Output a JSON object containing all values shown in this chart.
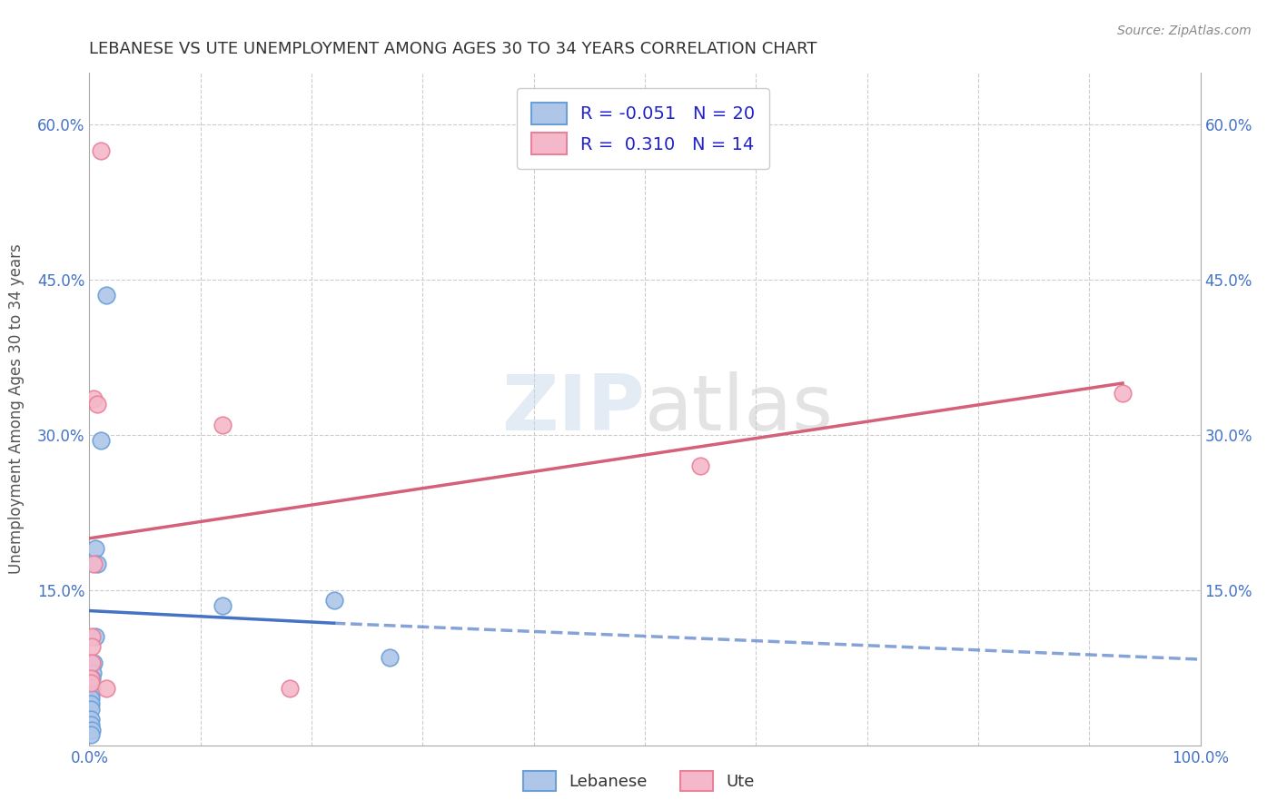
{
  "title": "LEBANESE VS UTE UNEMPLOYMENT AMONG AGES 30 TO 34 YEARS CORRELATION CHART",
  "source": "Source: ZipAtlas.com",
  "ylabel": "Unemployment Among Ages 30 to 34 years",
  "xlim": [
    0,
    1.0
  ],
  "ylim": [
    0,
    0.65
  ],
  "xticks": [
    0.0,
    0.1,
    0.2,
    0.3,
    0.4,
    0.5,
    0.6,
    0.7,
    0.8,
    0.9,
    1.0
  ],
  "xtick_labels": [
    "0.0%",
    "",
    "",
    "",
    "",
    "",
    "",
    "",
    "",
    "",
    "100.0%"
  ],
  "yticks": [
    0.0,
    0.15,
    0.3,
    0.45,
    0.6
  ],
  "ytick_labels": [
    "",
    "15.0%",
    "30.0%",
    "45.0%",
    "60.0%"
  ],
  "watermark_zip": "ZIP",
  "watermark_atlas": "atlas",
  "legend_R_lebanese": "-0.051",
  "legend_N_lebanese": "20",
  "legend_R_ute": "0.310",
  "legend_N_ute": "14",
  "lebanese_color": "#aec6e8",
  "lebanese_edge_color": "#6a9fd8",
  "lebanese_line_color": "#4472c4",
  "ute_color": "#f5b8ca",
  "ute_edge_color": "#e8829a",
  "ute_line_color": "#d4607a",
  "lebanese_scatter": [
    [
      0.01,
      0.295
    ],
    [
      0.015,
      0.435
    ],
    [
      0.005,
      0.19
    ],
    [
      0.007,
      0.175
    ],
    [
      0.005,
      0.105
    ],
    [
      0.004,
      0.08
    ],
    [
      0.003,
      0.07
    ],
    [
      0.002,
      0.065
    ],
    [
      0.002,
      0.055
    ],
    [
      0.001,
      0.05
    ],
    [
      0.001,
      0.045
    ],
    [
      0.001,
      0.04
    ],
    [
      0.001,
      0.035
    ],
    [
      0.001,
      0.025
    ],
    [
      0.001,
      0.02
    ],
    [
      0.002,
      0.015
    ],
    [
      0.001,
      0.01
    ],
    [
      0.12,
      0.135
    ],
    [
      0.22,
      0.14
    ],
    [
      0.27,
      0.085
    ]
  ],
  "ute_scatter": [
    [
      0.01,
      0.575
    ],
    [
      0.004,
      0.335
    ],
    [
      0.007,
      0.33
    ],
    [
      0.004,
      0.175
    ],
    [
      0.002,
      0.105
    ],
    [
      0.002,
      0.095
    ],
    [
      0.002,
      0.08
    ],
    [
      0.001,
      0.065
    ],
    [
      0.001,
      0.06
    ],
    [
      0.015,
      0.055
    ],
    [
      0.18,
      0.055
    ],
    [
      0.12,
      0.31
    ],
    [
      0.55,
      0.27
    ],
    [
      0.93,
      0.34
    ]
  ],
  "lebanese_trendline_solid": [
    [
      0.0,
      0.13
    ],
    [
      0.22,
      0.118
    ]
  ],
  "lebanese_trendline_dashed": [
    [
      0.22,
      0.118
    ],
    [
      1.0,
      0.083
    ]
  ],
  "ute_trendline": [
    [
      0.0,
      0.2
    ],
    [
      0.93,
      0.35
    ]
  ],
  "background_color": "#ffffff",
  "grid_color": "#cccccc",
  "tick_color": "#4472c4",
  "spine_color": "#aaaaaa"
}
